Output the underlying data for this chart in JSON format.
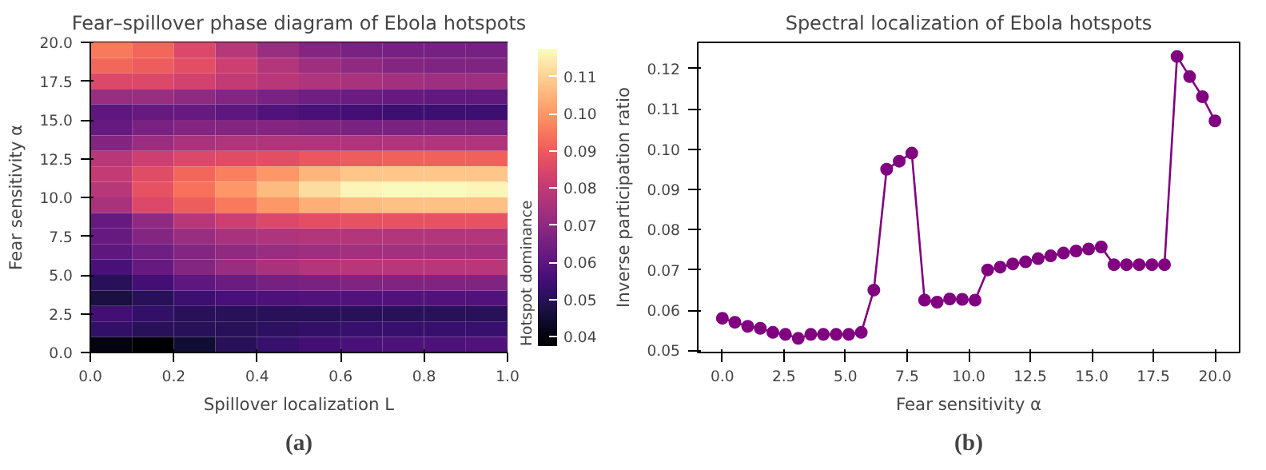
{
  "chart_data": [
    {
      "type": "heatmap",
      "title": "Fear–spillover phase diagram of Ebola hotspots",
      "xlabel": "Spillover localization L",
      "ylabel": "Fear sensitivity α",
      "clabel": "Hotspot dominance",
      "annotations": [
        "(a)"
      ],
      "xlim": [
        0,
        1
      ],
      "xticks": [
        {
          "value": 0,
          "label": "0.0"
        },
        0.2,
        0.4,
        0.6,
        0.8,
        {
          "value": 1,
          "label": "1.0"
        }
      ],
      "ylim": [
        0,
        20
      ],
      "yticks": [
        {
          "value": 0,
          "label": "0.0"
        },
        2.5,
        {
          "value": 5,
          "label": "5.0"
        },
        7.5,
        {
          "value": 10,
          "label": "10.0"
        },
        12.5,
        {
          "value": 15,
          "label": "15.0"
        },
        17.5,
        {
          "value": 20,
          "label": "20.0"
        }
      ],
      "clim": [
        0.0375,
        0.1175
      ],
      "cticks": [
        0.04,
        0.05,
        0.06,
        0.07,
        0.08,
        0.09,
        {
          "value": 0.1,
          "label": "0.10"
        },
        0.11
      ],
      "cells": [
        [
          0.095,
          0.092,
          0.085,
          0.078,
          0.072,
          0.068,
          0.066,
          0.065,
          0.065,
          0.065
        ],
        [
          0.092,
          0.09,
          0.087,
          0.082,
          0.077,
          0.073,
          0.07,
          0.068,
          0.067,
          0.067
        ],
        [
          0.085,
          0.085,
          0.083,
          0.08,
          0.078,
          0.076,
          0.075,
          0.074,
          0.073,
          0.073
        ],
        [
          0.072,
          0.072,
          0.07,
          0.068,
          0.066,
          0.064,
          0.063,
          0.062,
          0.061,
          0.061
        ],
        [
          0.06,
          0.062,
          0.062,
          0.06,
          0.058,
          0.056,
          0.055,
          0.054,
          0.054,
          0.054
        ],
        [
          0.062,
          0.066,
          0.068,
          0.068,
          0.068,
          0.067,
          0.066,
          0.066,
          0.066,
          0.066
        ],
        [
          0.068,
          0.072,
          0.075,
          0.076,
          0.076,
          0.076,
          0.076,
          0.076,
          0.076,
          0.076
        ],
        [
          0.078,
          0.082,
          0.085,
          0.086,
          0.087,
          0.089,
          0.09,
          0.091,
          0.091,
          0.091
        ],
        [
          0.08,
          0.086,
          0.092,
          0.096,
          0.1,
          0.105,
          0.108,
          0.108,
          0.108,
          0.108
        ],
        [
          0.078,
          0.088,
          0.094,
          0.1,
          0.106,
          0.112,
          0.116,
          0.117,
          0.117,
          0.116
        ],
        [
          0.075,
          0.085,
          0.09,
          0.095,
          0.1,
          0.104,
          0.106,
          0.107,
          0.107,
          0.107
        ],
        [
          0.062,
          0.07,
          0.078,
          0.082,
          0.085,
          0.087,
          0.088,
          0.088,
          0.088,
          0.088
        ],
        [
          0.062,
          0.068,
          0.072,
          0.075,
          0.076,
          0.077,
          0.077,
          0.077,
          0.077,
          0.077
        ],
        [
          0.06,
          0.064,
          0.068,
          0.07,
          0.072,
          0.073,
          0.074,
          0.074,
          0.074,
          0.074
        ],
        [
          0.056,
          0.062,
          0.068,
          0.072,
          0.075,
          0.077,
          0.078,
          0.078,
          0.078,
          0.078
        ],
        [
          0.05,
          0.055,
          0.06,
          0.063,
          0.065,
          0.066,
          0.067,
          0.067,
          0.067,
          0.067
        ],
        [
          0.047,
          0.05,
          0.054,
          0.056,
          0.057,
          0.058,
          0.058,
          0.058,
          0.058,
          0.058
        ],
        [
          0.055,
          0.052,
          0.05,
          0.05,
          0.05,
          0.05,
          0.05,
          0.05,
          0.05,
          0.05
        ],
        [
          0.052,
          0.05,
          0.05,
          0.05,
          0.051,
          0.052,
          0.053,
          0.053,
          0.053,
          0.053
        ],
        [
          0.04,
          0.038,
          0.045,
          0.05,
          0.053,
          0.055,
          0.056,
          0.057,
          0.057,
          0.058
        ]
      ]
    },
    {
      "type": "line",
      "title": "Spectral localization of Ebola hotspots",
      "xlabel": "Fear sensitivity α",
      "ylabel": "Inverse participation ratio",
      "annotations": [
        "(b)"
      ],
      "marker": "circle",
      "grid": false,
      "x": [
        0,
        0.51,
        1.03,
        1.54,
        2.05,
        2.56,
        3.08,
        3.59,
        4.1,
        4.62,
        5.13,
        5.64,
        6.15,
        6.67,
        7.18,
        7.69,
        8.21,
        8.72,
        9.23,
        9.74,
        10.26,
        10.77,
        11.28,
        11.79,
        12.31,
        12.82,
        13.33,
        13.85,
        14.36,
        14.87,
        15.38,
        15.9,
        16.41,
        16.92,
        17.44,
        17.95,
        18.46,
        18.97,
        19.49,
        20
      ],
      "xlim": [
        -1,
        21
      ],
      "xticks": [
        {
          "value": 0,
          "label": "0.0"
        },
        2.5,
        {
          "value": 5,
          "label": "5.0"
        },
        7.5,
        {
          "value": 10,
          "label": "10.0"
        },
        12.5,
        {
          "value": 15,
          "label": "15.0"
        },
        17.5,
        {
          "value": 20,
          "label": "20.0"
        }
      ],
      "ylim": [
        0.0495,
        0.1265
      ],
      "yticks": [
        0.05,
        0.06,
        0.07,
        0.08,
        0.09,
        {
          "value": 0.1,
          "label": "0.10"
        },
        0.11,
        0.12
      ],
      "series": [
        {
          "color": "#800080",
          "values": [
            0.058,
            0.057,
            0.056,
            0.0555,
            0.0545,
            0.054,
            0.053,
            0.054,
            0.054,
            0.054,
            0.054,
            0.0545,
            0.065,
            0.095,
            0.097,
            0.099,
            0.0625,
            0.062,
            0.0628,
            0.0627,
            0.0625,
            0.07,
            0.0707,
            0.0715,
            0.072,
            0.0728,
            0.0735,
            0.0742,
            0.0747,
            0.0752,
            0.0757,
            0.0713,
            0.0713,
            0.0713,
            0.0713,
            0.0713,
            0.123,
            0.118,
            0.113,
            0.107
          ]
        }
      ]
    }
  ]
}
